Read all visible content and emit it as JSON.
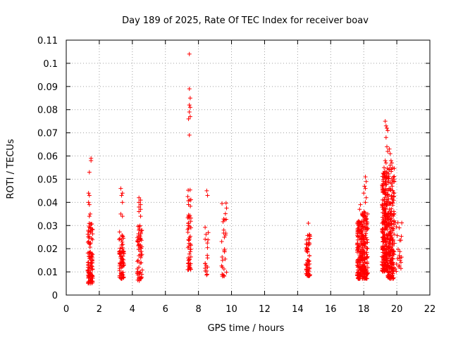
{
  "chart_data": {
    "type": "scatter",
    "title": "Day 189 of 2025, Rate Of TEC Index for receiver boav",
    "xlabel": "GPS time / hours",
    "ylabel": "ROTI / TECUs",
    "xlim": [
      0,
      22
    ],
    "ylim": [
      0,
      0.11
    ],
    "xticks": [
      0,
      2,
      4,
      6,
      8,
      10,
      12,
      14,
      16,
      18,
      20,
      22
    ],
    "yticks": [
      0,
      0.01,
      0.02,
      0.03,
      0.04,
      0.05,
      0.06,
      0.07,
      0.08,
      0.09,
      0.1,
      0.11
    ],
    "xtick_labels": [
      "0",
      "2",
      "4",
      "6",
      "8",
      "10",
      "12",
      "14",
      "16",
      "18",
      "20",
      "22"
    ],
    "ytick_labels": [
      "0",
      "0.01",
      "0.02",
      "0.03",
      "0.04",
      "0.05",
      "0.06",
      "0.07",
      "0.08",
      "0.09",
      "0.1",
      "0.11"
    ],
    "grid": true,
    "marker": "+",
    "marker_color": "#ff0000",
    "clusters": [
      {
        "x_range": [
          1.3,
          1.6
        ],
        "y_range": [
          0.005,
          0.031
        ],
        "count": 110,
        "outliers": [
          [
            1.5,
            0.059
          ],
          [
            1.5,
            0.058
          ],
          [
            1.4,
            0.053
          ],
          [
            1.35,
            0.044
          ],
          [
            1.4,
            0.043
          ],
          [
            1.35,
            0.04
          ],
          [
            1.4,
            0.039
          ],
          [
            1.45,
            0.035
          ],
          [
            1.4,
            0.034
          ]
        ]
      },
      {
        "x_range": [
          3.2,
          3.5
        ],
        "y_range": [
          0.007,
          0.03
        ],
        "count": 70,
        "outliers": [
          [
            3.3,
            0.046
          ],
          [
            3.4,
            0.044
          ],
          [
            3.35,
            0.043
          ],
          [
            3.4,
            0.04
          ],
          [
            3.3,
            0.035
          ],
          [
            3.4,
            0.034
          ]
        ]
      },
      {
        "x_range": [
          4.3,
          4.6
        ],
        "y_range": [
          0.006,
          0.03
        ],
        "count": 65,
        "outliers": [
          [
            4.4,
            0.042
          ],
          [
            4.5,
            0.041
          ],
          [
            4.4,
            0.04
          ],
          [
            4.5,
            0.039
          ],
          [
            4.4,
            0.038
          ],
          [
            4.5,
            0.037
          ],
          [
            4.4,
            0.036
          ],
          [
            4.5,
            0.034
          ],
          [
            4.4,
            0.028
          ]
        ]
      },
      {
        "x_range": [
          7.35,
          7.55
        ],
        "y_range": [
          0.01,
          0.046
        ],
        "count": 55,
        "outliers": [
          [
            7.45,
            0.104
          ],
          [
            7.45,
            0.089
          ],
          [
            7.5,
            0.085
          ],
          [
            7.45,
            0.082
          ],
          [
            7.5,
            0.081
          ],
          [
            7.45,
            0.079
          ],
          [
            7.5,
            0.077
          ],
          [
            7.4,
            0.076
          ],
          [
            7.45,
            0.069
          ]
        ]
      },
      {
        "x_range": [
          8.4,
          8.6
        ],
        "y_range": [
          0.008,
          0.03
        ],
        "count": 18,
        "outliers": [
          [
            8.5,
            0.045
          ],
          [
            8.55,
            0.043
          ]
        ]
      },
      {
        "x_range": [
          9.4,
          9.7
        ],
        "y_range": [
          0.008,
          0.04
        ],
        "count": 30,
        "outliers": []
      },
      {
        "x_range": [
          14.5,
          14.75
        ],
        "y_range": [
          0.008,
          0.027
        ],
        "count": 60,
        "outliers": [
          [
            14.65,
            0.031
          ]
        ]
      },
      {
        "x_range": [
          17.6,
          17.9
        ],
        "y_range": [
          0.007,
          0.032
        ],
        "count": 140,
        "outliers": [
          [
            17.8,
            0.039
          ],
          [
            17.75,
            0.037
          ]
        ]
      },
      {
        "x_range": [
          17.9,
          18.25
        ],
        "y_range": [
          0.007,
          0.036
        ],
        "count": 150,
        "outliers": [
          [
            18.1,
            0.051
          ],
          [
            18.15,
            0.049
          ],
          [
            18.05,
            0.047
          ],
          [
            18.1,
            0.046
          ],
          [
            18.0,
            0.044
          ],
          [
            18.15,
            0.042
          ],
          [
            18.1,
            0.04
          ]
        ]
      },
      {
        "x_range": [
          19.1,
          19.45
        ],
        "y_range": [
          0.01,
          0.055
        ],
        "count": 260,
        "outliers": [
          [
            19.3,
            0.075
          ],
          [
            19.35,
            0.073
          ],
          [
            19.4,
            0.072
          ],
          [
            19.45,
            0.071
          ],
          [
            19.35,
            0.068
          ],
          [
            19.4,
            0.064
          ],
          [
            19.45,
            0.062
          ],
          [
            19.3,
            0.058
          ],
          [
            19.35,
            0.057
          ]
        ]
      },
      {
        "x_range": [
          19.45,
          19.85
        ],
        "y_range": [
          0.007,
          0.055
        ],
        "count": 220,
        "outliers": [
          [
            19.55,
            0.063
          ],
          [
            19.6,
            0.061
          ],
          [
            19.65,
            0.058
          ],
          [
            19.7,
            0.057
          ],
          [
            19.6,
            0.056
          ]
        ]
      },
      {
        "x_range": [
          19.85,
          20.3
        ],
        "y_range": [
          0.01,
          0.032
        ],
        "count": 20,
        "outliers": [
          [
            20.15,
            0.029
          ],
          [
            20.15,
            0.017
          ],
          [
            20.2,
            0.016
          ],
          [
            20.2,
            0.015
          ]
        ]
      }
    ]
  }
}
